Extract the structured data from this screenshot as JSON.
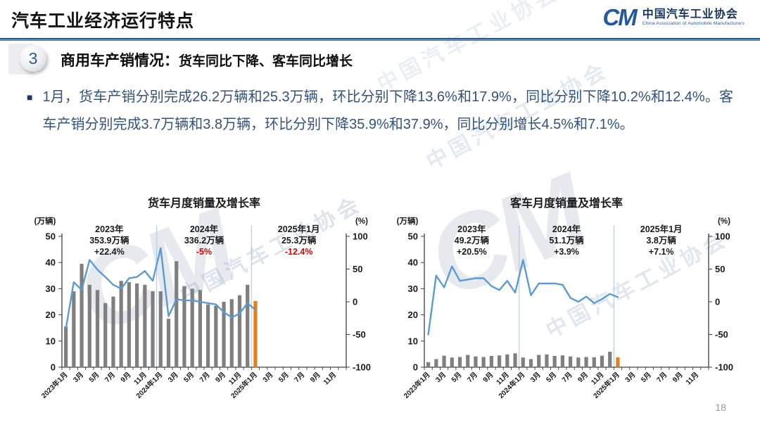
{
  "page": {
    "title": "汽车工业经济运行特点",
    "number": "18"
  },
  "logo": {
    "monogram": "CM",
    "org_name": "中国汽车工业协会",
    "org_name_en": "China Association of Automobile Manufacturers"
  },
  "section": {
    "badge": "3",
    "heading": "商用车产销情况：",
    "subheading": "货车同比下降、客车同比增长"
  },
  "body": {
    "bullet_text": "1月，货车产销分别完成26.2万辆和25.3万辆，环比分别下降13.6%和17.9%，同比分别下降10.2%和12.4%。客车产销分别完成3.7万辆和3.8万辆，环比分别下降35.9%和37.9%，同比分别增长4.5%和7.1%。"
  },
  "watermark": {
    "text": "中国汽车工业协会",
    "monogram": "CM"
  },
  "colors": {
    "line_blue": "#5B9BD5",
    "bar_gray": "#7F7F7F",
    "bar_orange": "#E2801F",
    "divider_blue": "#A9C6E2",
    "negative_red": "#E00000",
    "axis_dark": "#404040",
    "text_dark": "#1a1a1a"
  },
  "chart_data": [
    {
      "type": "bar+line",
      "title": "货车月度销量及增长率",
      "unit_left": "(万辆)",
      "unit_right": "(%)",
      "left_axis": {
        "min": 0,
        "max": 50,
        "ticks": [
          0,
          10,
          20,
          30,
          40,
          50
        ]
      },
      "right_axis": {
        "min": -100,
        "max": 100,
        "ticks": [
          100,
          50,
          0,
          -50,
          -100
        ]
      },
      "total_month_slots": 36,
      "x_tick_labels": [
        "2023年1月",
        "3月",
        "5月",
        "7月",
        "9月",
        "11月",
        "2024年1月",
        "3月",
        "5月",
        "7月",
        "9月",
        "11月",
        "2025年1月",
        "3月",
        "5月",
        "7月",
        "9月",
        "11月"
      ],
      "categories": [
        "2023年1月",
        "2023年2月",
        "2023年3月",
        "2023年4月",
        "2023年5月",
        "2023年6月",
        "2023年7月",
        "2023年8月",
        "2023年9月",
        "2023年10月",
        "2023年11月",
        "2023年12月",
        "2024年1月",
        "2024年2月",
        "2024年3月",
        "2024年4月",
        "2024年5月",
        "2024年6月",
        "2024年7月",
        "2024年8月",
        "2024年9月",
        "2024年10月",
        "2024年11月",
        "2024年12月",
        "2025年1月"
      ],
      "series": [
        {
          "name": "月度销量(万辆)",
          "type": "bar",
          "axis": "left",
          "values": [
            15.5,
            29,
            39.5,
            31.5,
            29.5,
            24.5,
            27,
            33,
            32.5,
            32,
            31.5,
            29,
            29,
            18.5,
            40.5,
            31,
            30,
            29.5,
            24,
            23.5,
            25,
            26,
            27.5,
            31.5,
            25.3
          ]
        },
        {
          "name": "同比增长率(%)",
          "type": "line",
          "axis": "right",
          "values": [
            -41,
            30,
            18,
            64,
            49,
            38,
            26,
            20,
            36,
            38,
            47,
            32,
            82,
            -22,
            4,
            2,
            2,
            0,
            -2,
            -4,
            -16,
            -24,
            -18,
            -2,
            -12.4
          ]
        }
      ],
      "year_dividers_after": [
        11,
        23
      ],
      "highlight_last_bar": true,
      "annotations": [
        {
          "label": "2023年",
          "volume": "353.9万辆",
          "growth": "+22.4%"
        },
        {
          "label": "2024年",
          "volume": "336.2万辆",
          "growth": "-5%"
        },
        {
          "label": "2025年1月",
          "volume": "25.3万辆",
          "growth": "-12.4%"
        }
      ]
    },
    {
      "type": "bar+line",
      "title": "客车月度销量及增长率",
      "unit_left": "(万辆)",
      "unit_right": "(%)",
      "left_axis": {
        "min": 0,
        "max": 50,
        "ticks": [
          0,
          10,
          20,
          30,
          40,
          50
        ]
      },
      "right_axis": {
        "min": -100,
        "max": 100,
        "ticks": [
          100,
          50,
          0,
          -50,
          -100
        ]
      },
      "total_month_slots": 36,
      "x_tick_labels": [
        "2023年1月",
        "3月",
        "5月",
        "7月",
        "9月",
        "11月",
        "2024年1月",
        "3月",
        "5月",
        "7月",
        "9月",
        "11月",
        "2025年1月",
        "3月",
        "5月",
        "7月",
        "9月",
        "11月"
      ],
      "categories": [
        "2023年1月",
        "2023年2月",
        "2023年3月",
        "2023年4月",
        "2023年5月",
        "2023年6月",
        "2023年7月",
        "2023年8月",
        "2023年9月",
        "2023年10月",
        "2023年11月",
        "2023年12月",
        "2024年1月",
        "2024年2月",
        "2024年3月",
        "2024年4月",
        "2024年5月",
        "2024年6月",
        "2024年7月",
        "2024年8月",
        "2024年9月",
        "2024年10月",
        "2024年11月",
        "2024年12月",
        "2025年1月"
      ],
      "series": [
        {
          "name": "月度销量(万辆)",
          "type": "bar",
          "axis": "left",
          "values": [
            1.9,
            3.1,
            4.4,
            3.7,
            3.9,
            4.7,
            4.1,
            3.9,
            4.3,
            4.5,
            4.9,
            5.3,
            3.7,
            3.1,
            4.7,
            4.9,
            4.3,
            4.5,
            4.1,
            3.7,
            3.9,
            3.8,
            4.4,
            5.9,
            3.8
          ]
        },
        {
          "name": "同比增长率(%)",
          "type": "line",
          "axis": "right",
          "values": [
            -50,
            40,
            22,
            54,
            32,
            34,
            36,
            36,
            24,
            18,
            32,
            14,
            64,
            10,
            28,
            28,
            28,
            26,
            6,
            0,
            8,
            -2,
            4,
            12,
            7.1
          ]
        }
      ],
      "year_dividers_after": [
        11,
        23
      ],
      "highlight_last_bar": true,
      "annotations": [
        {
          "label": "2023年",
          "volume": "49.2万辆",
          "growth": "+20.5%"
        },
        {
          "label": "2024年",
          "volume": "51.1万辆",
          "growth": "+3.9%"
        },
        {
          "label": "2025年1月",
          "volume": "3.8万辆",
          "growth": "+7.1%"
        }
      ]
    }
  ]
}
